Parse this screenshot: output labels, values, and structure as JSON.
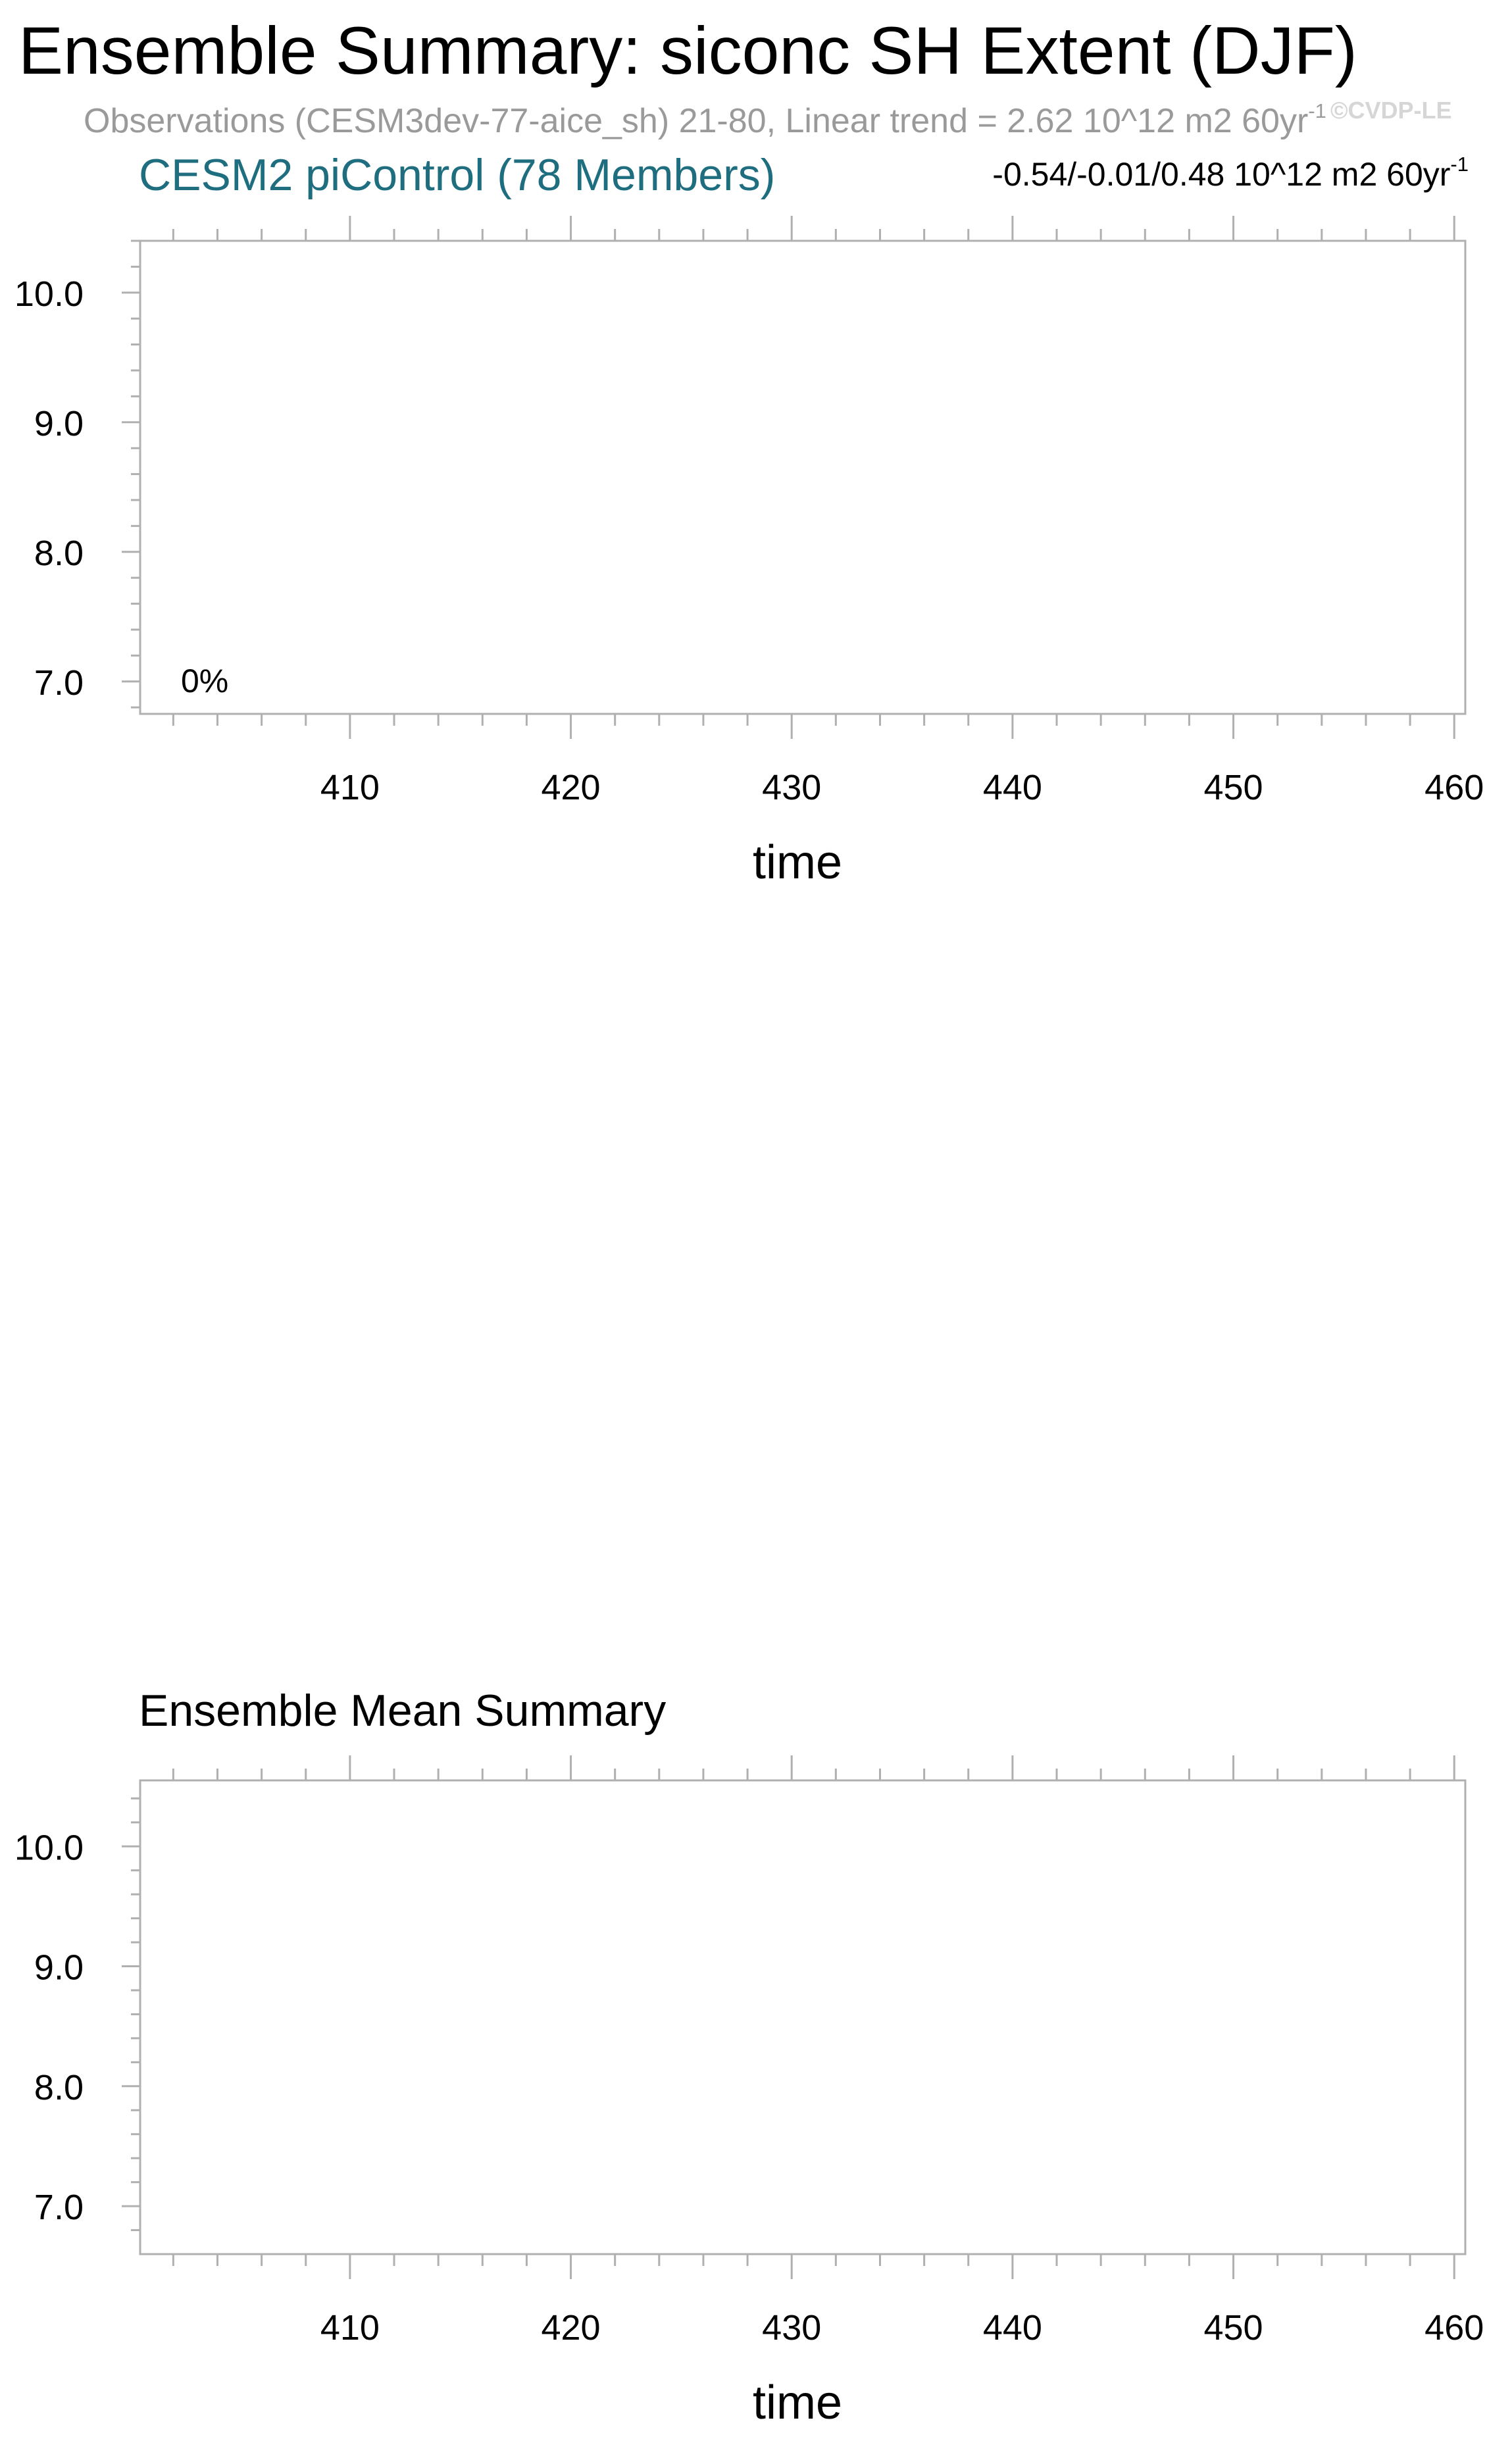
{
  "figure": {
    "title": "Ensemble Summary: siconc SH Extent (DJF)",
    "obs_subtitle": "Observations (CESM3dev-77-aice_sh) 21-80, Linear trend = 2.62 10^12 m2 60yr",
    "obs_subtitle_sup": "-1",
    "watermark": "©CVDP-LE"
  },
  "panel_top": {
    "model_title": "CESM2 piControl (78 Members)",
    "model_title_color": "#1f6e80",
    "trend_range": "-0.54/-0.01/0.48 10^12 m2 60yr",
    "trend_range_sup": "-1",
    "percent_label": "0%"
  },
  "panel_bottom": {
    "title": "Ensemble Mean Summary"
  },
  "chart_data": [
    {
      "type": "line",
      "title": "CESM2 piControl (78 Members)",
      "xlabel": "time",
      "ylabel": "",
      "xlim": [
        400.5,
        460.5
      ],
      "ylim": [
        6.75,
        10.4
      ],
      "x_ticks": [
        410,
        420,
        430,
        440,
        450,
        460
      ],
      "x_tick_labels": [
        "410",
        "420",
        "430",
        "440",
        "450",
        "460"
      ],
      "y_ticks": [
        7.0,
        8.0,
        9.0,
        10.0
      ],
      "y_tick_labels": [
        "7.0",
        "8.0",
        "9.0",
        "10.0"
      ],
      "annotation": "0%",
      "series": [],
      "grid": false
    },
    {
      "type": "line",
      "title": "Ensemble Mean Summary",
      "xlabel": "time",
      "ylabel": "",
      "xlim": [
        400.5,
        460.5
      ],
      "ylim": [
        6.6,
        10.55
      ],
      "x_ticks": [
        410,
        420,
        430,
        440,
        450,
        460
      ],
      "x_tick_labels": [
        "410",
        "420",
        "430",
        "440",
        "450",
        "460"
      ],
      "y_ticks": [
        7.0,
        8.0,
        9.0,
        10.0
      ],
      "y_tick_labels": [
        "7.0",
        "8.0",
        "9.0",
        "10.0"
      ],
      "series": [],
      "grid": false
    }
  ]
}
